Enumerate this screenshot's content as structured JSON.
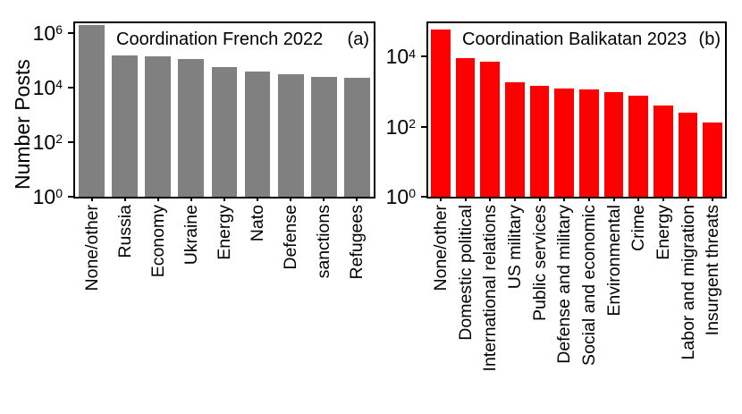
{
  "figure": {
    "ylabel": "Number Posts",
    "background": "#ffffff",
    "axis_color": "#000000"
  },
  "chart_data": [
    {
      "type": "bar",
      "title": "Coordination French 2022",
      "panel_label": "(a)",
      "bar_color": "#808080",
      "yscale": "log",
      "ylabel": "Number Posts",
      "ylim": [
        1,
        2300000
      ],
      "ytick_exponents": [
        6,
        4,
        2,
        0
      ],
      "grid": false,
      "categories": [
        "None/other",
        "Russia",
        "Economy",
        "Ukraine",
        "Energy",
        "Nato",
        "Defense",
        "sanctions",
        "Refugees"
      ],
      "values": [
        2000000,
        150000,
        140000,
        110000,
        55000,
        40000,
        32000,
        25000,
        23000
      ]
    },
    {
      "type": "bar",
      "title": "Coordination Balikatan 2023",
      "panel_label": "(b)",
      "bar_color": "#ff0000",
      "yscale": "log",
      "ylim": [
        1,
        90000
      ],
      "ytick_exponents": [
        4,
        2,
        0
      ],
      "grid": false,
      "categories": [
        "None/other",
        "Domestic political",
        "International relations",
        "US military",
        "Public services",
        "Defense and military",
        "Social and economic",
        "Environmental",
        "Crime",
        "Energy",
        "Labor and migration",
        "Insurgent threats"
      ],
      "values": [
        60000,
        9000,
        7000,
        1900,
        1500,
        1250,
        1150,
        950,
        750,
        400,
        250,
        130
      ]
    }
  ]
}
